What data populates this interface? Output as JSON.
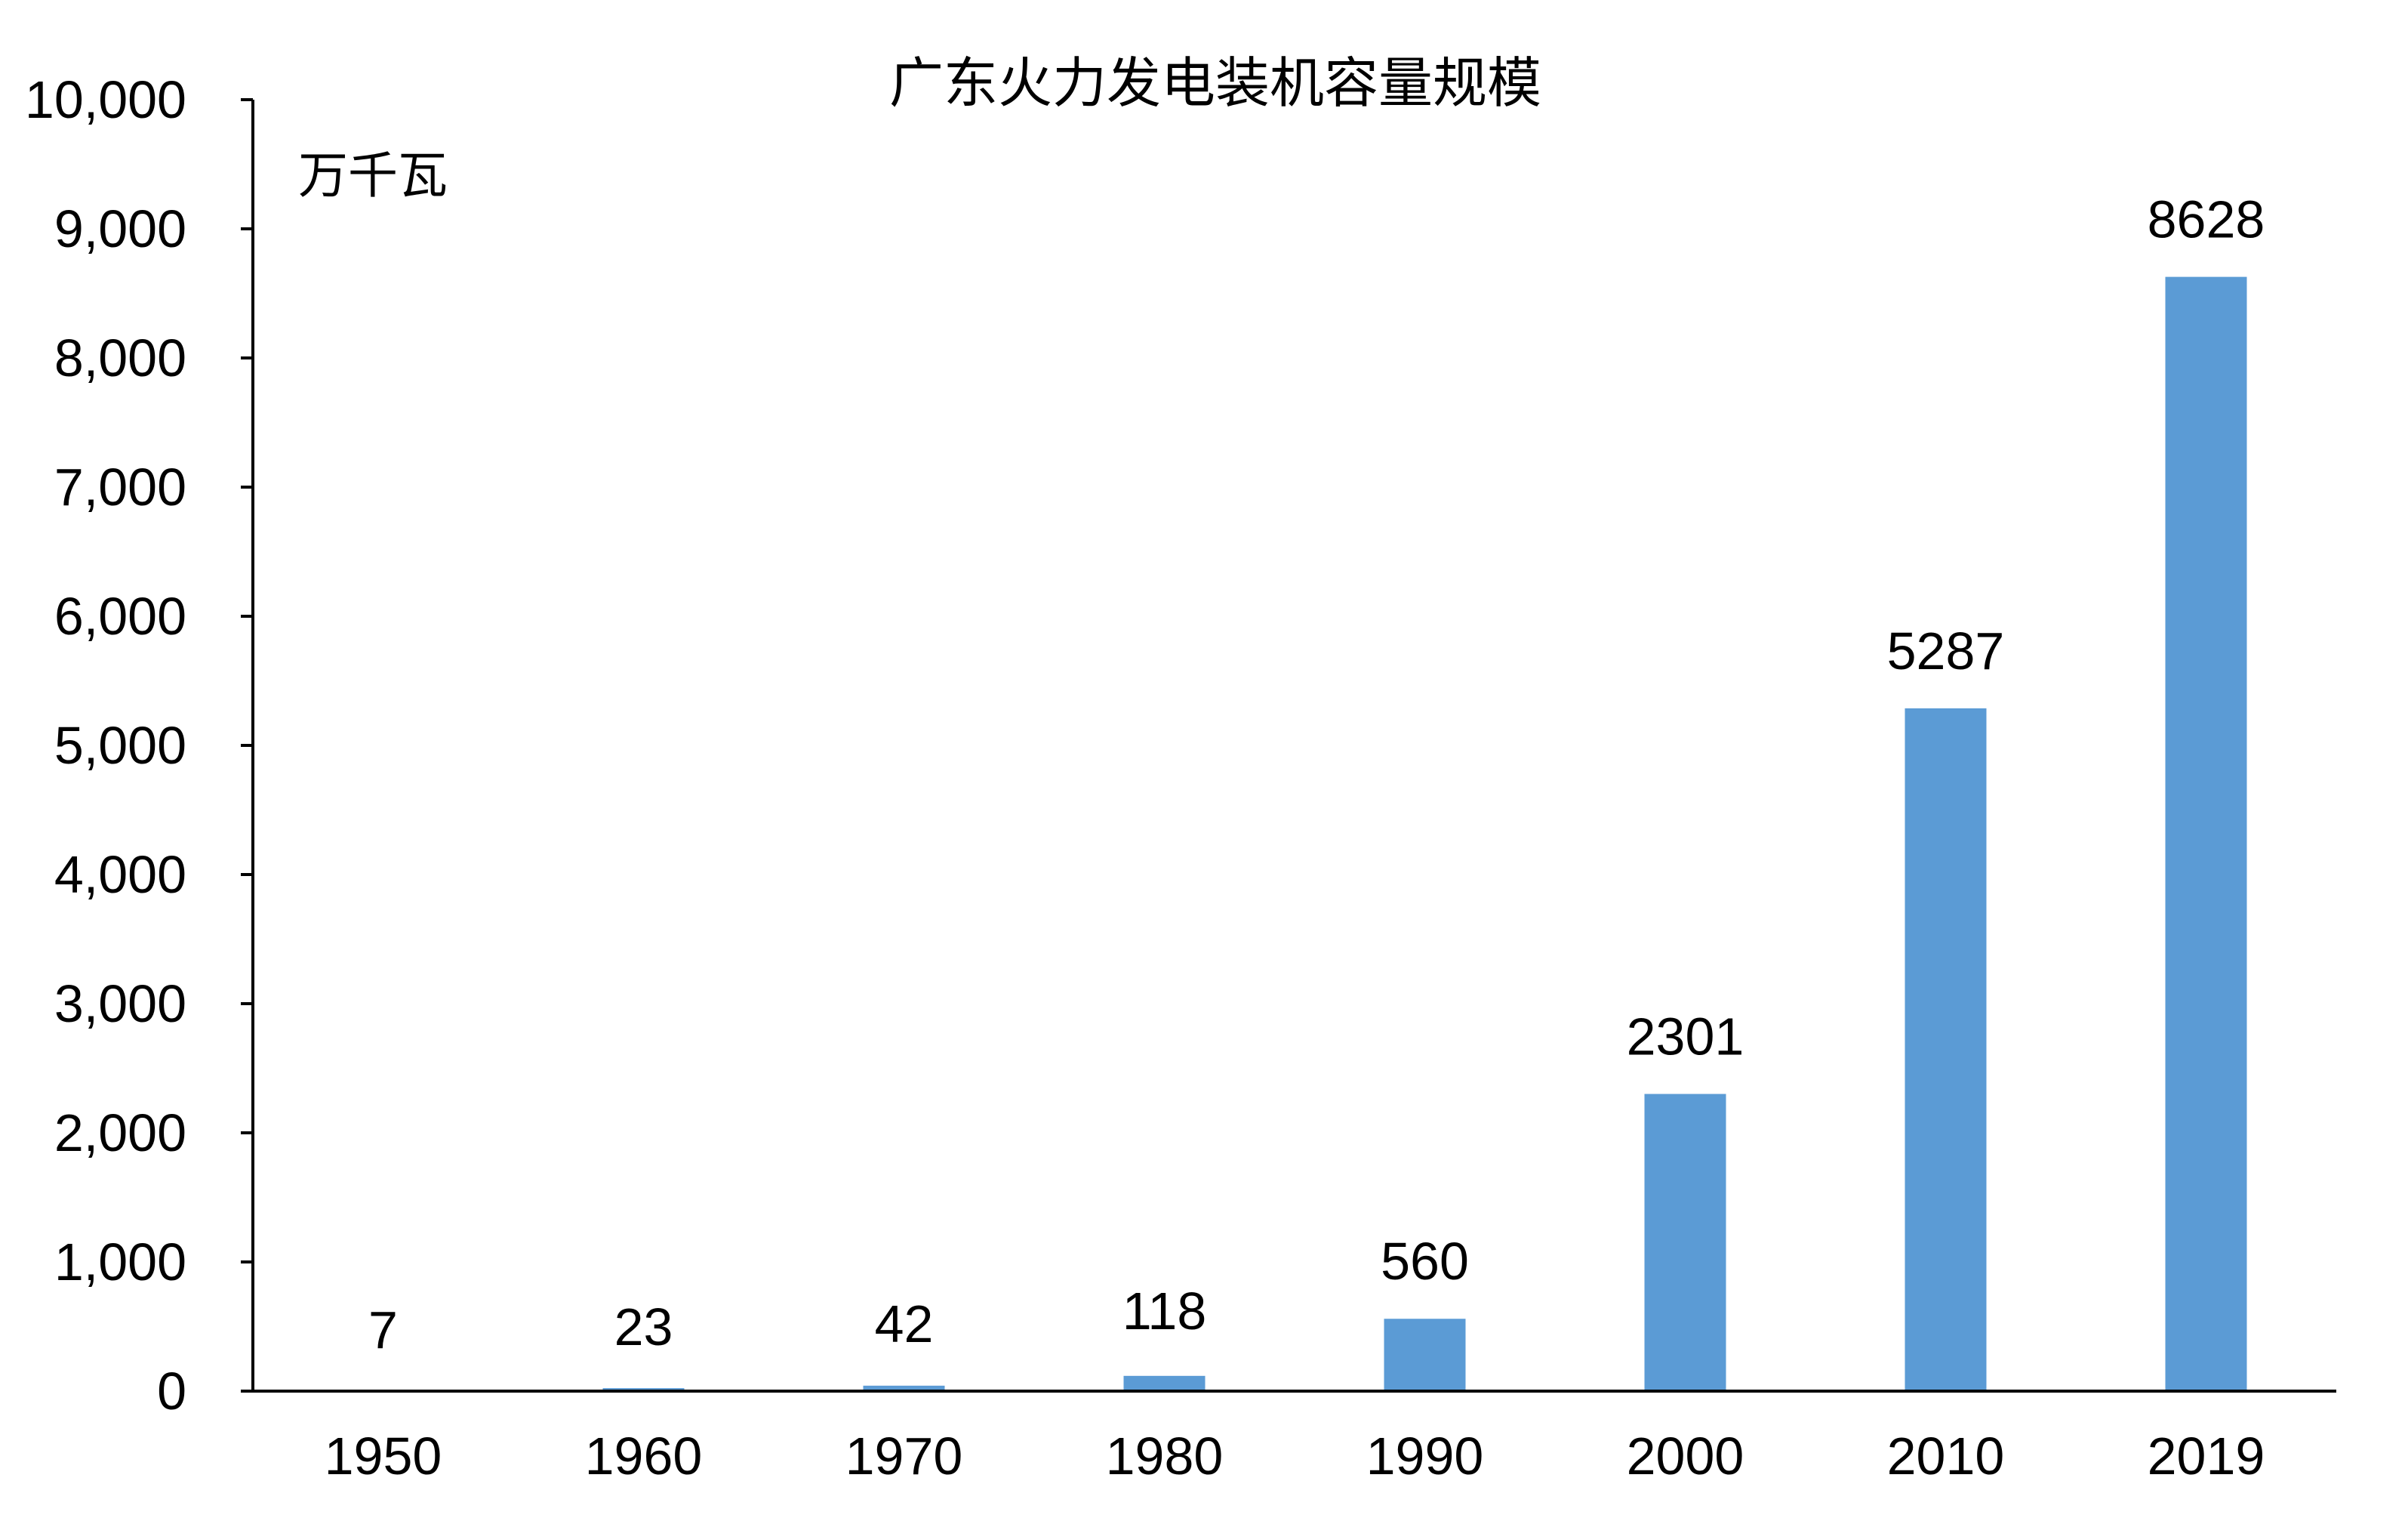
{
  "chart_data": {
    "type": "bar",
    "title": "广东火力发电装机容量规模",
    "unit_label": "万千瓦",
    "xlabel": "",
    "ylabel": "",
    "categories": [
      "1950",
      "1960",
      "1970",
      "1980",
      "1990",
      "2000",
      "2010",
      "2019"
    ],
    "values": [
      7,
      23,
      42,
      118,
      560,
      2301,
      5287,
      8628
    ],
    "data_labels": [
      "7",
      "23",
      "42",
      "118",
      "560",
      "2301",
      "5287",
      "8628"
    ],
    "ylim": [
      0,
      10000
    ],
    "yticks": [
      0,
      1000,
      2000,
      3000,
      4000,
      5000,
      6000,
      7000,
      8000,
      9000,
      10000
    ],
    "ytick_labels": [
      "0",
      "1,000",
      "2,000",
      "3,000",
      "4,000",
      "5,000",
      "6,000",
      "7,000",
      "8,000",
      "9,000",
      "10,000"
    ],
    "grid": false,
    "legend": "none",
    "bar_color": "#5B9BD5",
    "axis_color": "#000000"
  }
}
